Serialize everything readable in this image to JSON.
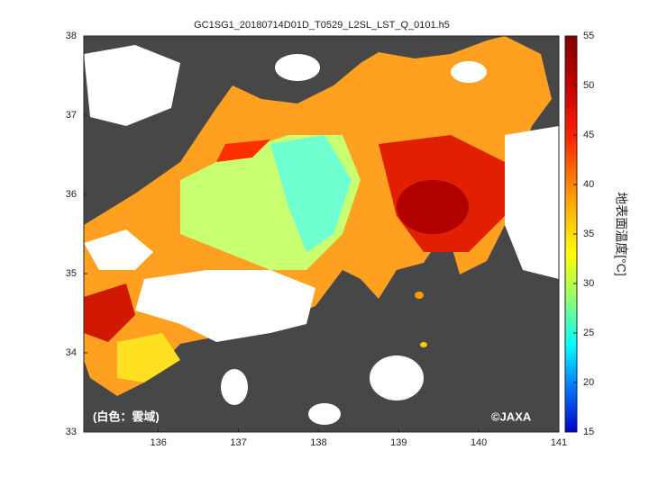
{
  "map": {
    "title": "GC1SG1_20180714D01D_T0529_L2SL_LST_Q_0101.h5",
    "xlim": [
      135.07,
      141
    ],
    "xticks": [
      136,
      137,
      138,
      139,
      140,
      141
    ],
    "ylim": [
      33,
      38
    ],
    "yticks": [
      33,
      34,
      35,
      36,
      37,
      38
    ],
    "colorbar": {
      "label": "地表面温度[°C]",
      "lim": [
        15,
        55
      ],
      "ticks": [
        15,
        20,
        25,
        30,
        35,
        40,
        45,
        50,
        55
      ]
    },
    "annotations": [
      "(白色：雲域)",
      "©JAXA"
    ]
  }
}
